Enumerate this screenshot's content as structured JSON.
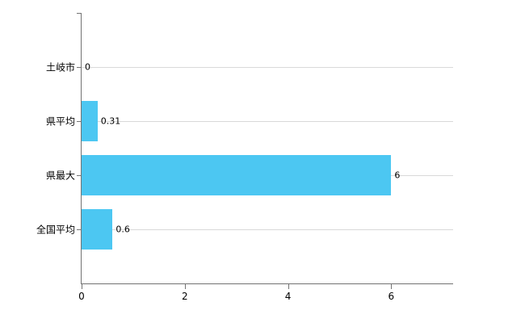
{
  "chart_data": {
    "type": "bar",
    "orientation": "horizontal",
    "title": "",
    "xlabel": "",
    "ylabel": "",
    "categories": [
      "土岐市",
      "県平均",
      "県最大",
      "全国平均"
    ],
    "values": [
      0,
      0.31,
      6,
      0.6
    ],
    "value_labels": [
      "0",
      "0.31",
      "6",
      "0.6"
    ],
    "x_ticks": [
      0,
      2,
      4,
      6
    ],
    "x_tick_labels": [
      "0",
      "2",
      "4",
      "6"
    ],
    "xlim": [
      0,
      7.2
    ],
    "grid": "horizontal gridlines at category centers",
    "legend": "none",
    "colors": {
      "bar": "#4cc7f2",
      "gridline": "#d9d9d9",
      "axis": "#737373",
      "text": "#000000",
      "background": "#ffffff"
    }
  }
}
